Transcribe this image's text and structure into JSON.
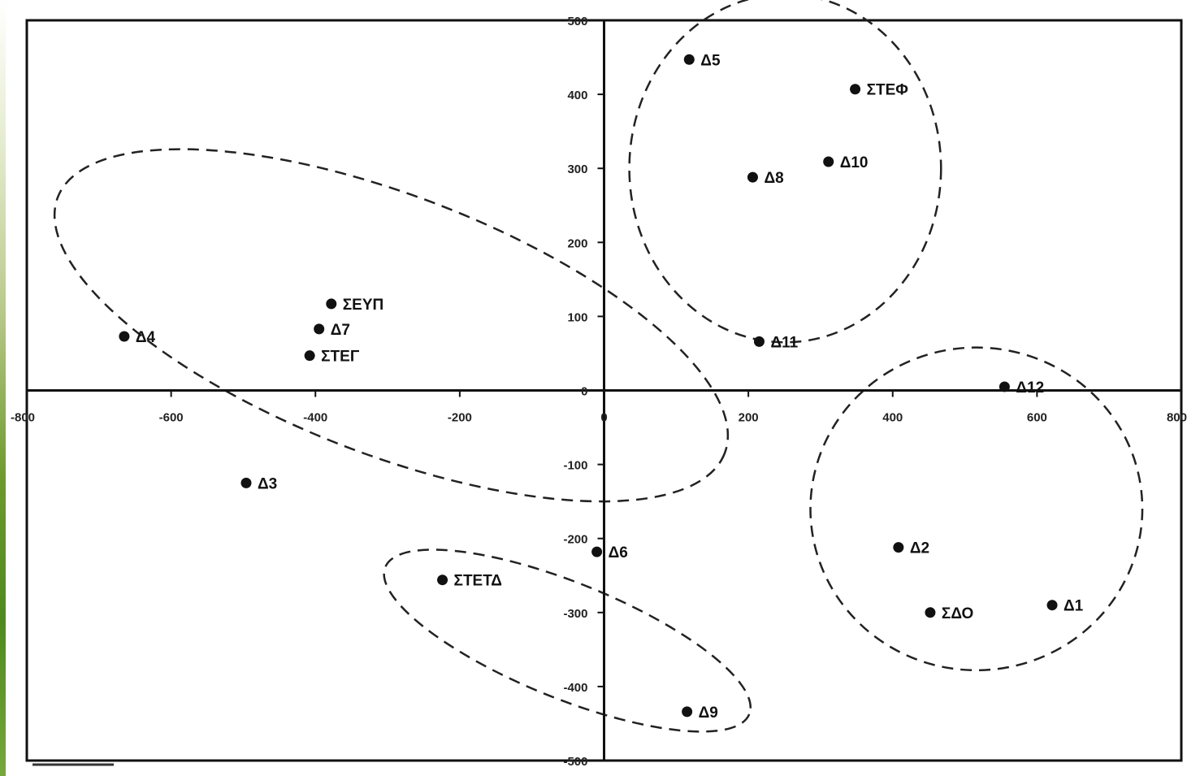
{
  "chart_data": {
    "type": "scatter",
    "title": "",
    "xlabel": "",
    "ylabel": "",
    "xlim": [
      -800,
      800
    ],
    "ylim": [
      -500,
      500
    ],
    "grid": false,
    "legend": "none",
    "x_ticks": [
      -800,
      -600,
      -400,
      -200,
      0,
      200,
      400,
      600,
      800
    ],
    "x_tick_labels": [
      "-800",
      "-600",
      "-400",
      "-200",
      "0",
      "200",
      "400",
      "600",
      "800"
    ],
    "y_ticks": [
      500,
      400,
      300,
      200,
      100,
      0,
      -100,
      -200,
      -300,
      -400,
      -500
    ],
    "y_tick_labels": [
      "500",
      "400",
      "300",
      "200",
      "100",
      "0",
      "-100",
      "-200",
      "-300",
      "-400",
      "-500"
    ],
    "points": [
      {
        "label": "Δ5",
        "x": 118,
        "y": 447
      },
      {
        "label": "ΣΤΕΦ",
        "x": 348,
        "y": 407
      },
      {
        "label": "Δ10",
        "x": 311,
        "y": 309
      },
      {
        "label": "Δ8",
        "x": 206,
        "y": 288
      },
      {
        "label": "Δ11",
        "x": 215,
        "y": 66
      },
      {
        "label": "ΣΕΥΠ",
        "x": -378,
        "y": 117
      },
      {
        "label": "Δ7",
        "x": -395,
        "y": 83
      },
      {
        "label": "Δ4",
        "x": -665,
        "y": 73
      },
      {
        "label": "ΣΤΕΓ",
        "x": -408,
        "y": 47
      },
      {
        "label": "Δ12",
        "x": 555,
        "y": 5
      },
      {
        "label": "Δ3",
        "x": -496,
        "y": -125
      },
      {
        "label": "Δ6",
        "x": -10,
        "y": -218
      },
      {
        "label": "ΣΤΕΤΔ",
        "x": -224,
        "y": -256
      },
      {
        "label": "Δ2",
        "x": 408,
        "y": -212
      },
      {
        "label": "ΣΔΟ",
        "x": 452,
        "y": -300
      },
      {
        "label": "Δ1",
        "x": 621,
        "y": -290
      },
      {
        "label": "Δ9",
        "x": 115,
        "y": -434
      }
    ],
    "clusters": [
      {
        "cx": 251,
        "cy": 300,
        "rx": 216,
        "ry": 235
      },
      {
        "cx": 516,
        "cy": -160,
        "rx": 230,
        "ry": 218
      },
      {
        "cx": -295,
        "cy": 88,
        "rx": 495,
        "ry": 175,
        "rotate": 21
      },
      {
        "cx": -51,
        "cy": -338,
        "rx": 272,
        "ry": 78,
        "rotate": 22
      }
    ],
    "colors": {
      "axis": "#111111",
      "marker": "#111111",
      "cluster": "#222222",
      "background": "#ffffff"
    }
  }
}
